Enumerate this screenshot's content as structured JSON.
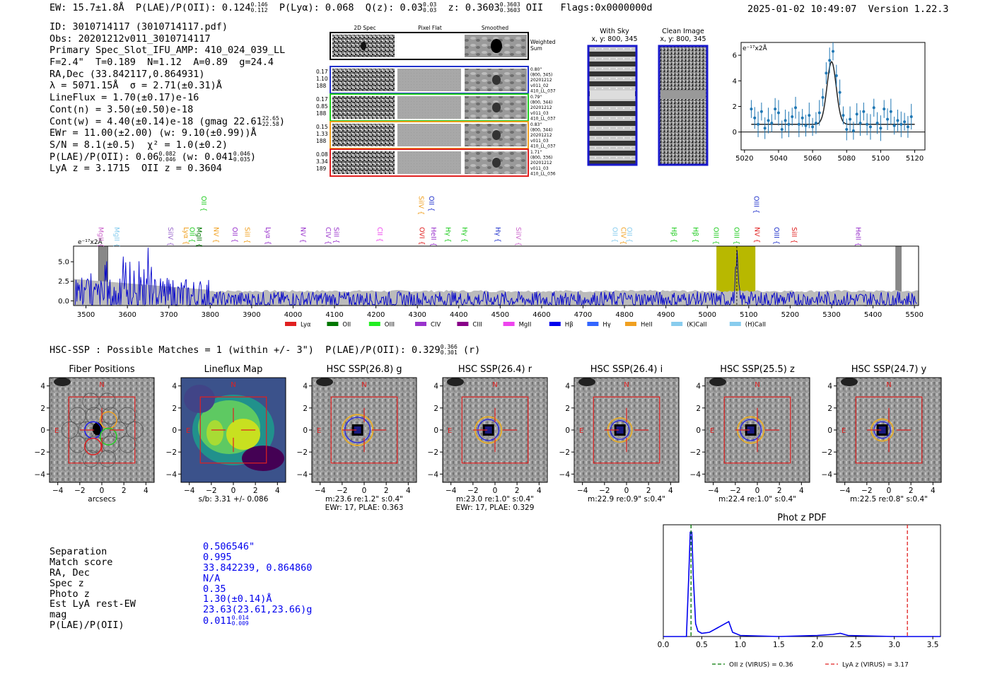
{
  "header": {
    "left": "EW: 15.7±1.8Å  P(LAE)/P(OII): 0.124",
    "left_sup": "0.146",
    "left_sub": "0.112",
    "left2": "  P(Lyα): 0.068  Q(z): 0.03",
    "q_sup": "0.03",
    "q_sub": "0.03",
    "left3": "  z: 0.3603",
    "z_sup": "0.3603",
    "z_sub": "0.3603",
    "left4": " OII   Flags:0x0000000d",
    "right": "2025-01-02 10:49:07  Version 1.22.3"
  },
  "info": {
    "l1": "ID: 3010714117 (3010714117.pdf)",
    "l2": "Obs: 20201212v011_3010714117",
    "l3": "Primary Spec_Slot_IFU_AMP: 410_024_039_LL",
    "l4": "F=2.4\"  T=0.189  N=1.12  A=0.89  g=24.4",
    "l5": "RA,Dec (33.842117,0.864931)",
    "l6": "λ = 5071.15Å  σ = 2.71(±0.31)Å",
    "l7": "LineFlux = 1.70(±0.17)e-16",
    "l8": "Cont(n) = 3.50(±0.50)e-18",
    "l9": "Cont(w) = 4.40(±0.14)e-18 (gmag 22.61",
    "l9_sup": "22.65",
    "l9_sub": "22.58",
    "l9_end": ")",
    "l10": "EWr = 11.00(±2.00) (w: 9.10(±0.99))Å",
    "l11": "S/N = 8.1(±0.5)  χ² = 1.0(±0.2)",
    "l12": "P(LAE)/P(OII): 0.06",
    "l12_sup": "0.082",
    "l12_sub": "0.046",
    "l12_mid": " (w: 0.041",
    "l12_sup2": "0.046",
    "l12_sub2": "0.035",
    "l12_end": ")",
    "l13": "LyA z = 3.1715  OII z = 0.3604"
  },
  "cutouts": {
    "col_titles": [
      "2D Spec",
      "Pixel Flat",
      "Smoothed"
    ],
    "weighted_label": "Weighted Sum",
    "rows": [
      {
        "left": [
          "0.17",
          "1.10",
          "188"
        ],
        "right": [
          "0.80\"",
          "(800, 345)",
          "20201212",
          "v011_02",
          "410_LL_037"
        ],
        "color": "#2233cc"
      },
      {
        "left": [
          "0.17",
          "0.85",
          "188"
        ],
        "right": [
          "0.79\"",
          "(800, 344)",
          "20201212",
          "v011_03",
          "410_LL_037"
        ],
        "color": "#22cc22"
      },
      {
        "left": [
          "0.15",
          "1.33",
          "188"
        ],
        "right": [
          "0.83\"",
          "(800, 344)",
          "20201212",
          "v011_03",
          "410_LL_037"
        ],
        "color": "#f0a020"
      },
      {
        "left": [
          "0.08",
          "3.34",
          "189"
        ],
        "right": [
          "1.71\"",
          "(800, 336)",
          "20201212",
          "v011_03",
          "410_LL_036"
        ],
        "color": "#e02020"
      }
    ]
  },
  "sky": {
    "with_sky_title": "With Sky",
    "with_sky_coords": "x, y: 800, 345",
    "clean_title": "Clean Image",
    "clean_coords": "x, y: 800, 345"
  },
  "chart_data": [
    {
      "type": "scatter",
      "title": "zoom-spectrum",
      "ylabel": "e⁻¹⁷x2Å",
      "xlim": [
        5018,
        5126
      ],
      "ylim": [
        -1.4,
        7.0
      ],
      "xticks": [
        "5020",
        "5040",
        "5060",
        "5080",
        "5100",
        "5120"
      ],
      "yticks": [
        "0",
        "2",
        "4",
        "6"
      ],
      "x": [
        5024,
        5026,
        5028,
        5030,
        5032,
        5034,
        5036,
        5038,
        5040,
        5042,
        5044,
        5046,
        5048,
        5050,
        5052,
        5054,
        5056,
        5058,
        5060,
        5062,
        5064,
        5066,
        5068,
        5070,
        5072,
        5074,
        5076,
        5078,
        5080,
        5082,
        5084,
        5086,
        5088,
        5090,
        5092,
        5094,
        5096,
        5098,
        5100,
        5102,
        5104,
        5106,
        5108,
        5110,
        5112,
        5114,
        5116,
        5118
      ],
      "y": [
        1.8,
        1.1,
        0.6,
        1.6,
        0.3,
        0.9,
        0.7,
        1.8,
        1.5,
        0.2,
        0.9,
        0.6,
        1.2,
        1.9,
        0.6,
        1.1,
        0.5,
        1.3,
        0.4,
        0.7,
        1.5,
        2.7,
        4.6,
        5.6,
        6.3,
        4.4,
        3.1,
        1.3,
        0.2,
        1.0,
        0.1,
        1.4,
        0.7,
        1.6,
        0.6,
        0.4,
        1.9,
        0.7,
        0.3,
        1.8,
        1.0,
        1.6,
        0.5,
        0.9,
        0.6,
        0.8,
        0.4,
        1.2
      ],
      "fit": "gaussian",
      "fit_center": 5071.15,
      "fit_amp": 4.9,
      "fit_sigma": 2.71,
      "fit_continuum": 0.6
    },
    {
      "type": "line",
      "title": "full-spectrum",
      "ylabel": "e⁻¹⁷x2Å",
      "xlim": [
        3470,
        5510
      ],
      "ylim": [
        -0.6,
        7.0
      ],
      "xticks": [
        "3500",
        "3600",
        "3700",
        "3800",
        "3900",
        "4000",
        "4100",
        "4200",
        "4300",
        "4400",
        "4500",
        "4600",
        "4700",
        "4800",
        "4900",
        "5000",
        "5100",
        "5200",
        "5300",
        "5400",
        "5500"
      ],
      "yticks": [
        "0.0",
        "2.5",
        "5.0"
      ],
      "highlight_range": [
        5022,
        5116
      ],
      "line_center": 5071.15,
      "masked_ranges": [
        [
          3530,
          3553
        ],
        [
          5455,
          5468
        ]
      ],
      "series_name": "spectrum",
      "series_color": "#0000cc",
      "error_name": "error",
      "error_color": "#bbbbbb",
      "line_markers": [
        {
          "label": "MgII",
          "wave": 3537,
          "color": "#cc66cc",
          "row": 1
        },
        {
          "label": "MgII",
          "wave": 3575,
          "color": "#88ccee",
          "row": 1
        },
        {
          "label": "SiIV",
          "wave": 3705,
          "color": "#9966cc",
          "row": 1
        },
        {
          "label": "Lyα",
          "wave": 3742,
          "color": "#f0a020",
          "row": 1
        },
        {
          "label": "OII",
          "wave": 3757,
          "color": "#22cc22",
          "row": 1
        },
        {
          "label": "MgII",
          "wave": 3774,
          "color": "#007700",
          "row": 1
        },
        {
          "label": "OII",
          "wave": 3785,
          "color": "#22cc22",
          "row": 0
        },
        {
          "label": "NV",
          "wave": 3815,
          "color": "#f0a020",
          "row": 1
        },
        {
          "label": "OII",
          "wave": 3860,
          "color": "#9933cc",
          "row": 1
        },
        {
          "label": "SiII",
          "wave": 3890,
          "color": "#f0a020",
          "row": 1
        },
        {
          "label": "Lyα",
          "wave": 3940,
          "color": "#9933cc",
          "row": 1
        },
        {
          "label": "NV",
          "wave": 4025,
          "color": "#9933cc",
          "row": 1
        },
        {
          "label": "CIV",
          "wave": 4085,
          "color": "#9933cc",
          "row": 1
        },
        {
          "label": "SiII",
          "wave": 4105,
          "color": "#9933cc",
          "row": 1
        },
        {
          "label": "CII",
          "wave": 4210,
          "color": "#ee44ee",
          "row": 1
        },
        {
          "label": "SiIV",
          "wave": 4310,
          "color": "#f0a020",
          "row": 0
        },
        {
          "label": "OVI",
          "wave": 4312,
          "color": "#e02020",
          "row": 1
        },
        {
          "label": "OII",
          "wave": 4335,
          "color": "#2233cc",
          "row": 0
        },
        {
          "label": "HeII",
          "wave": 4340,
          "color": "#9933cc",
          "row": 1
        },
        {
          "label": "Hγ",
          "wave": 4375,
          "color": "#22cc22",
          "row": 1
        },
        {
          "label": "Hγ",
          "wave": 4415,
          "color": "#22cc22",
          "row": 1
        },
        {
          "label": "Hγ",
          "wave": 4495,
          "color": "#2233cc",
          "row": 1
        },
        {
          "label": "SiIV",
          "wave": 4545,
          "color": "#cc66cc",
          "row": 1
        },
        {
          "label": "OII",
          "wave": 4778,
          "color": "#88ccee",
          "row": 1
        },
        {
          "label": "CIV",
          "wave": 4798,
          "color": "#f0a020",
          "row": 1
        },
        {
          "label": "OII",
          "wave": 4813,
          "color": "#88ccee",
          "row": 1
        },
        {
          "label": "Hβ",
          "wave": 4920,
          "color": "#22cc22",
          "row": 1
        },
        {
          "label": "Hβ",
          "wave": 4972,
          "color": "#22cc22",
          "row": 1
        },
        {
          "label": "OIII",
          "wave": 5022,
          "color": "#22cc22",
          "row": 1
        },
        {
          "label": "OIII",
          "wave": 5071,
          "color": "#22cc22",
          "row": 1
        },
        {
          "label": "NV",
          "wave": 5121,
          "color": "#e02020",
          "row": 1
        },
        {
          "label": "OIII",
          "wave": 5119,
          "color": "#2233cc",
          "row": 0
        },
        {
          "label": "OIII",
          "wave": 5168,
          "color": "#2233cc",
          "row": 1
        },
        {
          "label": "SiII",
          "wave": 5210,
          "color": "#e02020",
          "row": 1
        },
        {
          "label": "HeII",
          "wave": 5365,
          "color": "#9933cc",
          "row": 1
        }
      ],
      "legend": [
        {
          "label": "Lyα",
          "color": "#e02020"
        },
        {
          "label": "OII",
          "color": "#007700"
        },
        {
          "label": "OIII",
          "color": "#22ee22"
        },
        {
          "label": "CIV",
          "color": "#9933cc"
        },
        {
          "label": "CIII",
          "color": "#880088"
        },
        {
          "label": "MgII",
          "color": "#ee44ee"
        },
        {
          "label": "Hβ",
          "color": "#0000ee"
        },
        {
          "label": "Hγ",
          "color": "#3366ff"
        },
        {
          "label": "HeII",
          "color": "#f0a020"
        },
        {
          "label": "(K)CaII",
          "color": "#88ccee"
        },
        {
          "label": "(H)CaII",
          "color": "#88ccee"
        }
      ]
    },
    {
      "type": "line",
      "title": "Phot z PDF",
      "xlim": [
        0.0,
        3.6
      ],
      "ylim": [
        0,
        1.05
      ],
      "xticks": [
        "0.0",
        "0.5",
        "1.0",
        "1.5",
        "2.0",
        "2.5",
        "3.0",
        "3.5"
      ],
      "x": [
        0.0,
        0.3,
        0.33,
        0.35,
        0.37,
        0.39,
        0.42,
        0.45,
        0.5,
        0.6,
        0.7,
        0.8,
        0.85,
        0.9,
        1.0,
        1.5,
        2.0,
        2.2,
        2.3,
        2.4,
        3.0,
        3.6
      ],
      "y": [
        0.0,
        0.0,
        0.55,
        0.98,
        0.98,
        0.55,
        0.12,
        0.05,
        0.03,
        0.04,
        0.08,
        0.12,
        0.14,
        0.04,
        0.01,
        0.0,
        0.01,
        0.02,
        0.03,
        0.01,
        0.0,
        0.0
      ],
      "vlines": [
        {
          "x": 0.36,
          "color": "#007700",
          "label": "OII z (VIRUS) = 0.36"
        },
        {
          "x": 3.17,
          "color": "#e02020",
          "label": "LyA z (VIRUS) = 3.17"
        }
      ]
    }
  ],
  "hsc": {
    "title_pre": "HSC-SSP : Possible Matches = 1 (within +/- 3\")  P(LAE)/P(OII): 0.329",
    "title_sup": "0.366",
    "title_sub": "0.301",
    "title_post": " (r)"
  },
  "stamps": {
    "ticks": [
      "−4",
      "−2",
      "0",
      "2",
      "4"
    ],
    "n_label": "N",
    "e_label": "E",
    "panels": [
      {
        "title": "Fiber Positions",
        "caption1": "arcsecs",
        "caption2": ""
      },
      {
        "title": "Lineflux Map",
        "caption1": "s/b: 3.31 +/- 0.086",
        "caption2": ""
      },
      {
        "title": "HSC SSP(26.8) g",
        "caption1": "m:23.6  re:1.2\"  s:0.4\"",
        "caption2": "EWr: 17, PLAE: 0.363"
      },
      {
        "title": "HSC SSP(26.4) r",
        "caption1": "m:23.0  re:1.0\"  s:0.4\"",
        "caption2": "EWr: 17, PLAE: 0.329"
      },
      {
        "title": "HSC SSP(26.4) i",
        "caption1": "m:22.9  re:0.9\"  s:0.4\"",
        "caption2": ""
      },
      {
        "title": "HSC SSP(25.5) z",
        "caption1": "m:22.4  re:1.0\"  s:0.4\"",
        "caption2": ""
      },
      {
        "title": "HSC SSP(24.7) y",
        "caption1": "m:22.5  re:0.8\"  s:0.4\"",
        "caption2": ""
      }
    ]
  },
  "match": {
    "labels": [
      "Separation",
      "Match score",
      "RA, Dec",
      "Spec z",
      "Photo z",
      "Est LyA rest-EW",
      "mag",
      "P(LAE)/P(OII)"
    ],
    "values": [
      "0.506546\"",
      "0.995",
      "33.842239, 0.864860",
      "N/A",
      "0.35",
      "1.30(±0.14)Å",
      "23.63(23.61,23.66)g",
      "0.011"
    ],
    "plae_sup": "0.014",
    "plae_sub": "0.009"
  }
}
